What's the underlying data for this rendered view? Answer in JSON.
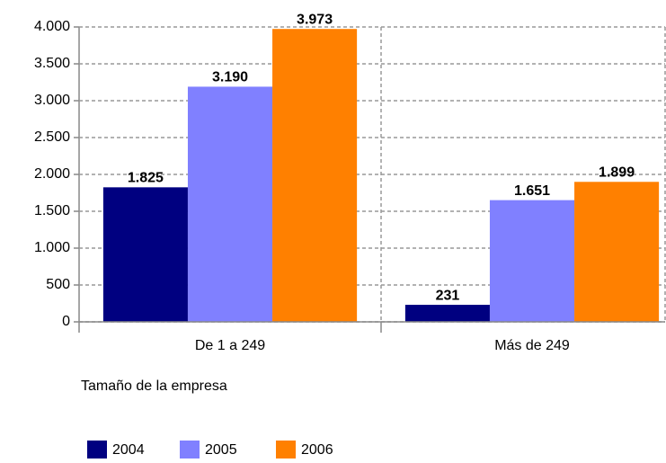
{
  "chart_data": {
    "type": "bar",
    "categories": [
      "De 1 a 249",
      "Más de 249"
    ],
    "series": [
      {
        "name": "2004",
        "color": "#000080",
        "values": [
          1825,
          231
        ],
        "value_labels": [
          "1.825",
          "231"
        ]
      },
      {
        "name": "2005",
        "color": "#8080ff",
        "values": [
          3190,
          1651
        ],
        "value_labels": [
          "3.190",
          "1.651"
        ]
      },
      {
        "name": "2006",
        "color": "#ff8000",
        "values": [
          3973,
          1899
        ],
        "value_labels": [
          "3.973",
          "1.899"
        ]
      }
    ],
    "xlabel": "Tamaño de la empresa",
    "ylim": [
      0,
      4000
    ],
    "yticks": [
      0,
      500,
      {
        "value": 1000,
        "label": "1.000"
      },
      {
        "value": 1500,
        "label": "1.500"
      },
      {
        "value": 2000,
        "label": "2.000"
      },
      {
        "value": 2500,
        "label": "2.500"
      },
      {
        "value": 3000,
        "label": "3.000"
      },
      {
        "value": 3500,
        "label": "3.500"
      },
      {
        "value": 4000,
        "label": "4.000"
      }
    ],
    "grid": true,
    "legend": "bottom"
  }
}
